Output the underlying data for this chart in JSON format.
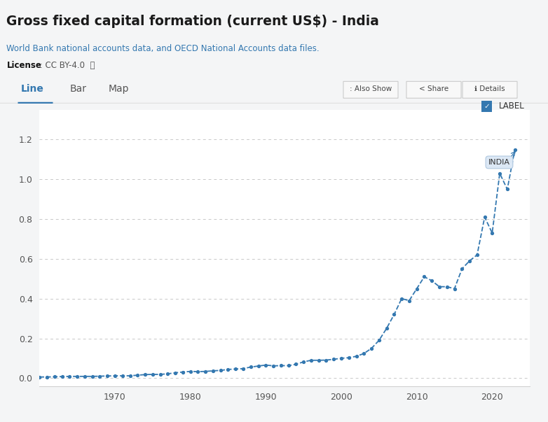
{
  "title": "Gross fixed capital formation (current US$) - India",
  "source_line1": "World Bank national accounts data, and OECD National Accounts data files.",
  "license_bold": "License",
  "license_rest": " : CC BY-4.0  ⓘ",
  "tab_active": "Line",
  "tab_inactive": [
    "Bar",
    "Map"
  ],
  "btn_labels": [
    "Also Show",
    "Share",
    "Details"
  ],
  "label_checkbox": "LABEL",
  "india_label": "INDIA",
  "yticks": [
    0.0,
    0.2,
    0.4,
    0.6,
    0.8,
    1.0,
    1.2
  ],
  "ylim": [
    -0.04,
    1.35
  ],
  "xlim": [
    1960,
    2025
  ],
  "xticks": [
    1970,
    1980,
    1990,
    2000,
    2010,
    2020
  ],
  "grid_color": "#c8c8c8",
  "line_color": "#3478b0",
  "bg_color": "#f4f5f6",
  "plot_bg": "#ffffff",
  "tab_underline_color": "#3478b0",
  "title_color": "#1a1a1a",
  "source_color": "#3478b0",
  "license_color": "#555555",
  "years": [
    1960,
    1961,
    1962,
    1963,
    1964,
    1965,
    1966,
    1967,
    1968,
    1969,
    1970,
    1971,
    1972,
    1973,
    1974,
    1975,
    1976,
    1977,
    1978,
    1979,
    1980,
    1981,
    1982,
    1983,
    1984,
    1985,
    1986,
    1987,
    1988,
    1989,
    1990,
    1991,
    1992,
    1993,
    1994,
    1995,
    1996,
    1997,
    1998,
    1999,
    2000,
    2001,
    2002,
    2003,
    2004,
    2005,
    2006,
    2007,
    2008,
    2009,
    2010,
    2011,
    2012,
    2013,
    2014,
    2015,
    2016,
    2017,
    2018,
    2019,
    2020,
    2021,
    2022,
    2023
  ],
  "values": [
    0.006,
    0.006,
    0.007,
    0.008,
    0.009,
    0.009,
    0.009,
    0.009,
    0.01,
    0.011,
    0.012,
    0.012,
    0.012,
    0.015,
    0.018,
    0.019,
    0.019,
    0.022,
    0.027,
    0.031,
    0.034,
    0.033,
    0.034,
    0.037,
    0.039,
    0.044,
    0.046,
    0.048,
    0.056,
    0.061,
    0.066,
    0.062,
    0.063,
    0.063,
    0.07,
    0.082,
    0.09,
    0.09,
    0.091,
    0.095,
    0.1,
    0.103,
    0.11,
    0.124,
    0.15,
    0.19,
    0.25,
    0.32,
    0.4,
    0.39,
    0.45,
    0.51,
    0.49,
    0.46,
    0.46,
    0.45,
    0.55,
    0.59,
    0.62,
    0.81,
    0.73,
    1.03,
    0.95,
    1.15
  ]
}
